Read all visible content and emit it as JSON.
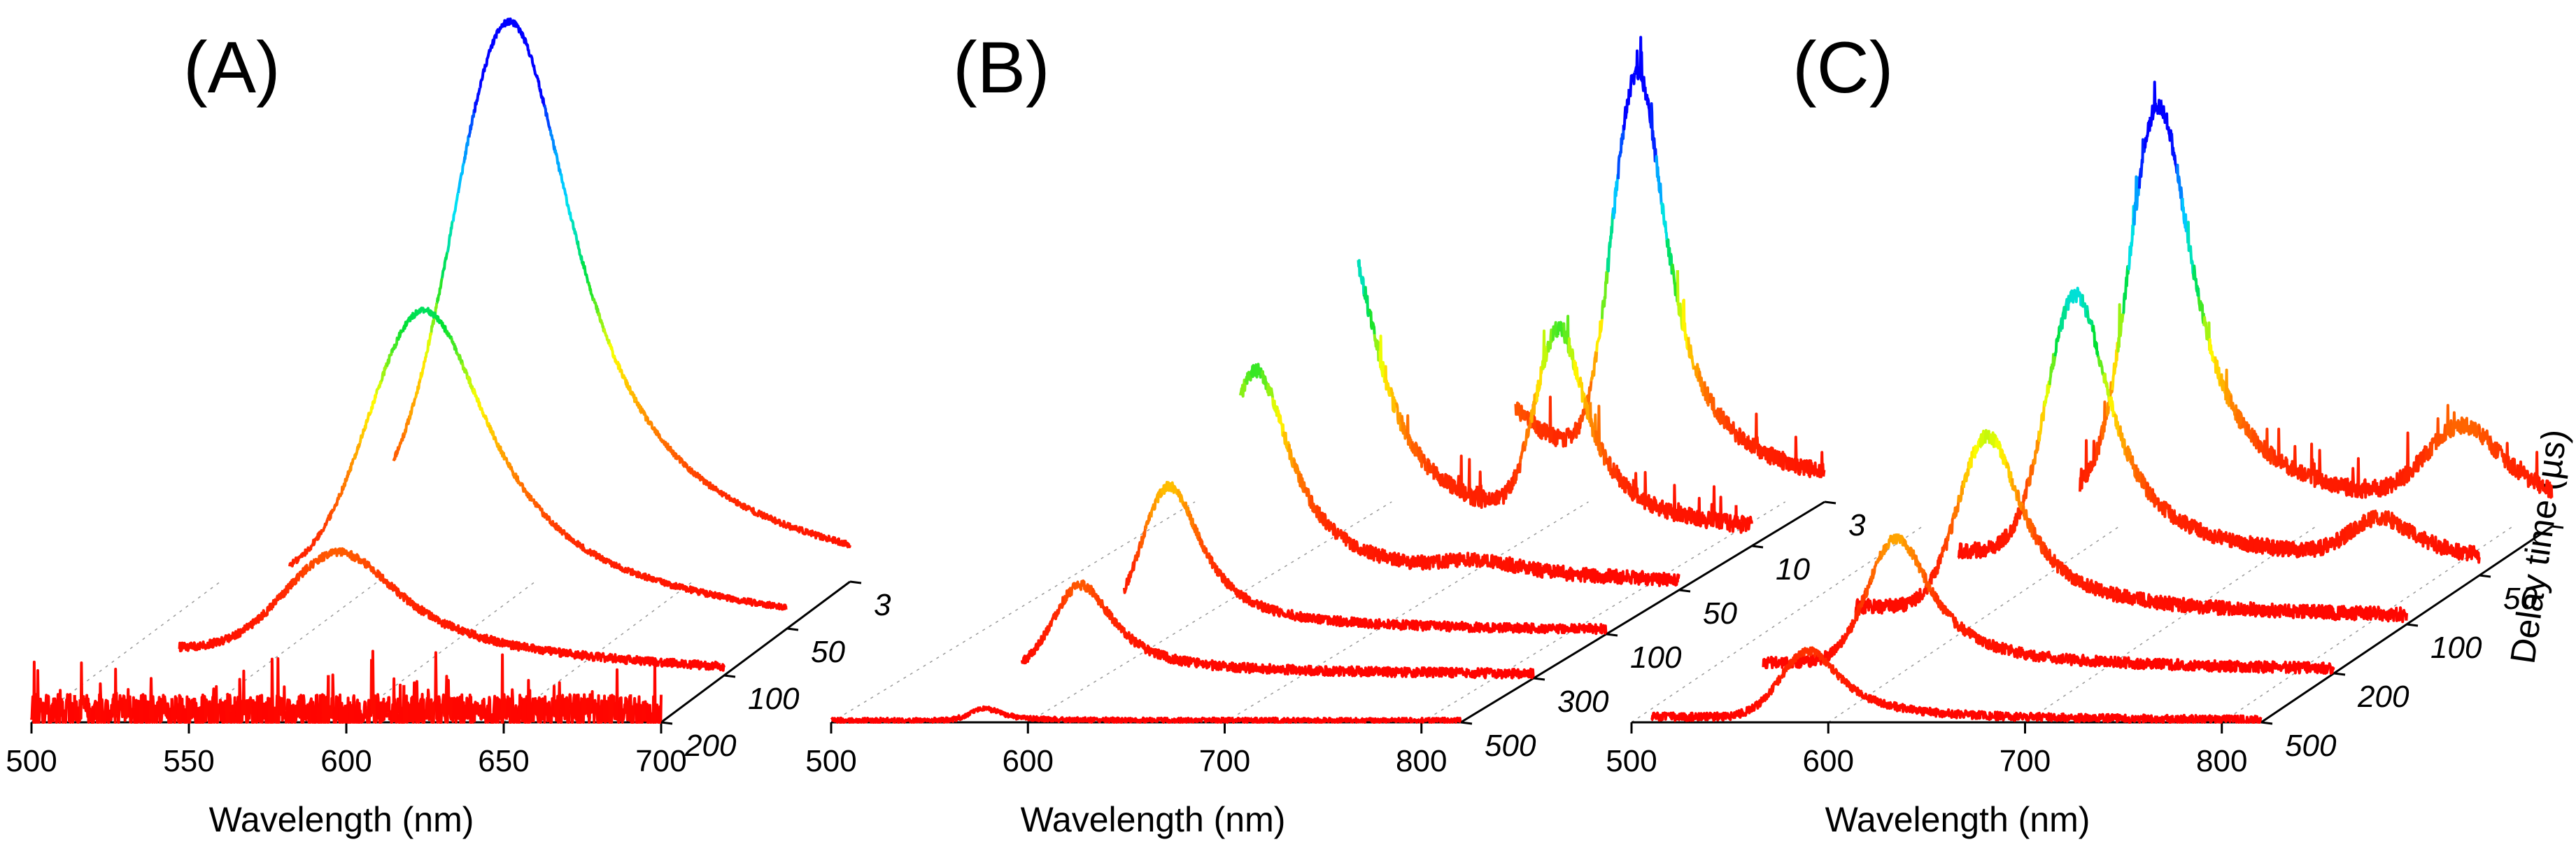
{
  "chart_data": [
    {
      "type": "line",
      "panel_label": "(A)",
      "x_range": [
        500,
        700
      ],
      "x_ticks": [
        500,
        550,
        600,
        650,
        700
      ],
      "xlabel": "Wavelength (nm)",
      "depth_label": "",
      "depth_ticks": [
        "3",
        "50",
        "100",
        "200"
      ],
      "series": [
        {
          "name": "3",
          "start": 555,
          "peaks": [
            {
              "center": 592,
              "width": 24,
              "height": 1.0
            }
          ],
          "baseline": 0.02,
          "tail": 0.14,
          "noise": 0.006
        },
        {
          "name": "50",
          "start": 542,
          "peaks": [
            {
              "center": 585,
              "width": 24,
              "height": 0.55
            }
          ],
          "baseline": 0.015,
          "tail": 0.1,
          "noise": 0.006
        },
        {
          "name": "100",
          "start": 527,
          "peaks": [
            {
              "center": 578,
              "width": 23,
              "height": 0.2
            }
          ],
          "baseline": 0.01,
          "tail": 0.05,
          "noise": 0.008
        },
        {
          "name": "200",
          "start": 500,
          "peaks": [],
          "baseline": 0.02,
          "tail": 0,
          "noise": 0.035
        }
      ]
    },
    {
      "type": "line",
      "panel_label": "(B)",
      "x_range": [
        500,
        820
      ],
      "x_ticks": [
        500,
        600,
        700,
        800
      ],
      "xlabel": "Wavelength (nm)",
      "depth_label": "",
      "depth_ticks": [
        "3",
        "10",
        "50",
        "100",
        "300",
        "500"
      ],
      "series": [
        {
          "name": "3",
          "start": 663,
          "peaks": [
            {
              "center": 617,
              "width": 20,
              "height": 0.95
            },
            {
              "center": 725,
              "width": 17,
              "height": 1.0
            }
          ],
          "baseline": 0.03,
          "tail": 0.1,
          "noise": 0.022
        },
        {
          "name": "10",
          "start": 620,
          "peaks": [
            {
              "center": 612,
              "width": 20,
              "height": 0.75
            },
            {
              "center": 722,
              "width": 16,
              "height": 0.48
            }
          ],
          "baseline": 0.03,
          "tail": 0.06,
          "noise": 0.022
        },
        {
          "name": "50",
          "start": 597,
          "peaks": [
            {
              "center": 605,
              "width": 20,
              "height": 0.52
            },
            {
              "center": 720,
              "width": 25,
              "height": 0.03
            }
          ],
          "baseline": 0.02,
          "tail": 0.03,
          "noise": 0.018
        },
        {
          "name": "100",
          "start": 575,
          "peaks": [
            {
              "center": 598,
              "width": 19,
              "height": 0.36
            }
          ],
          "baseline": 0.01,
          "tail": 0.01,
          "noise": 0.012
        },
        {
          "name": "300",
          "start": 560,
          "peaks": [
            {
              "center": 590,
              "width": 19,
              "height": 0.22
            }
          ],
          "baseline": 0.01,
          "tail": 0.01,
          "noise": 0.012
        },
        {
          "name": "500",
          "start": 500,
          "peaks": [
            {
              "center": 578,
              "width": 10,
              "height": 0.03
            }
          ],
          "baseline": 0.005,
          "tail": 0,
          "noise": 0.006
        }
      ]
    },
    {
      "type": "line",
      "panel_label": "(C)",
      "x_range": [
        500,
        820
      ],
      "x_ticks": [
        500,
        600,
        700,
        800
      ],
      "xlabel": "Wavelength (nm)",
      "depth_label": "Delay time (µs)",
      "depth_ticks": [
        "3",
        "50",
        "100",
        "200",
        "500"
      ],
      "series": [
        {
          "name": "3",
          "start": 580,
          "peaks": [
            {
              "center": 620,
              "width": 20,
              "height": 1.0
            },
            {
              "center": 775,
              "width": 25,
              "height": 0.2
            }
          ],
          "baseline": 0.03,
          "tail": 0.07,
          "noise": 0.022
        },
        {
          "name": "50",
          "start": 555,
          "peaks": [
            {
              "center": 615,
              "width": 20,
              "height": 0.66
            },
            {
              "center": 770,
              "width": 20,
              "height": 0.1
            }
          ],
          "baseline": 0.03,
          "tail": 0.04,
          "noise": 0.02
        },
        {
          "name": "100",
          "start": 540,
          "peaks": [
            {
              "center": 607,
              "width": 20,
              "height": 0.44
            }
          ],
          "baseline": 0.02,
          "tail": 0.03,
          "noise": 0.018
        },
        {
          "name": "200",
          "start": 530,
          "peaks": [
            {
              "center": 598,
              "width": 20,
              "height": 0.32
            }
          ],
          "baseline": 0.01,
          "tail": 0.02,
          "noise": 0.014
        },
        {
          "name": "500",
          "start": 510,
          "peaks": [
            {
              "center": 590,
              "width": 19,
              "height": 0.17
            }
          ],
          "baseline": 0.005,
          "tail": 0.01,
          "noise": 0.01
        }
      ]
    }
  ]
}
